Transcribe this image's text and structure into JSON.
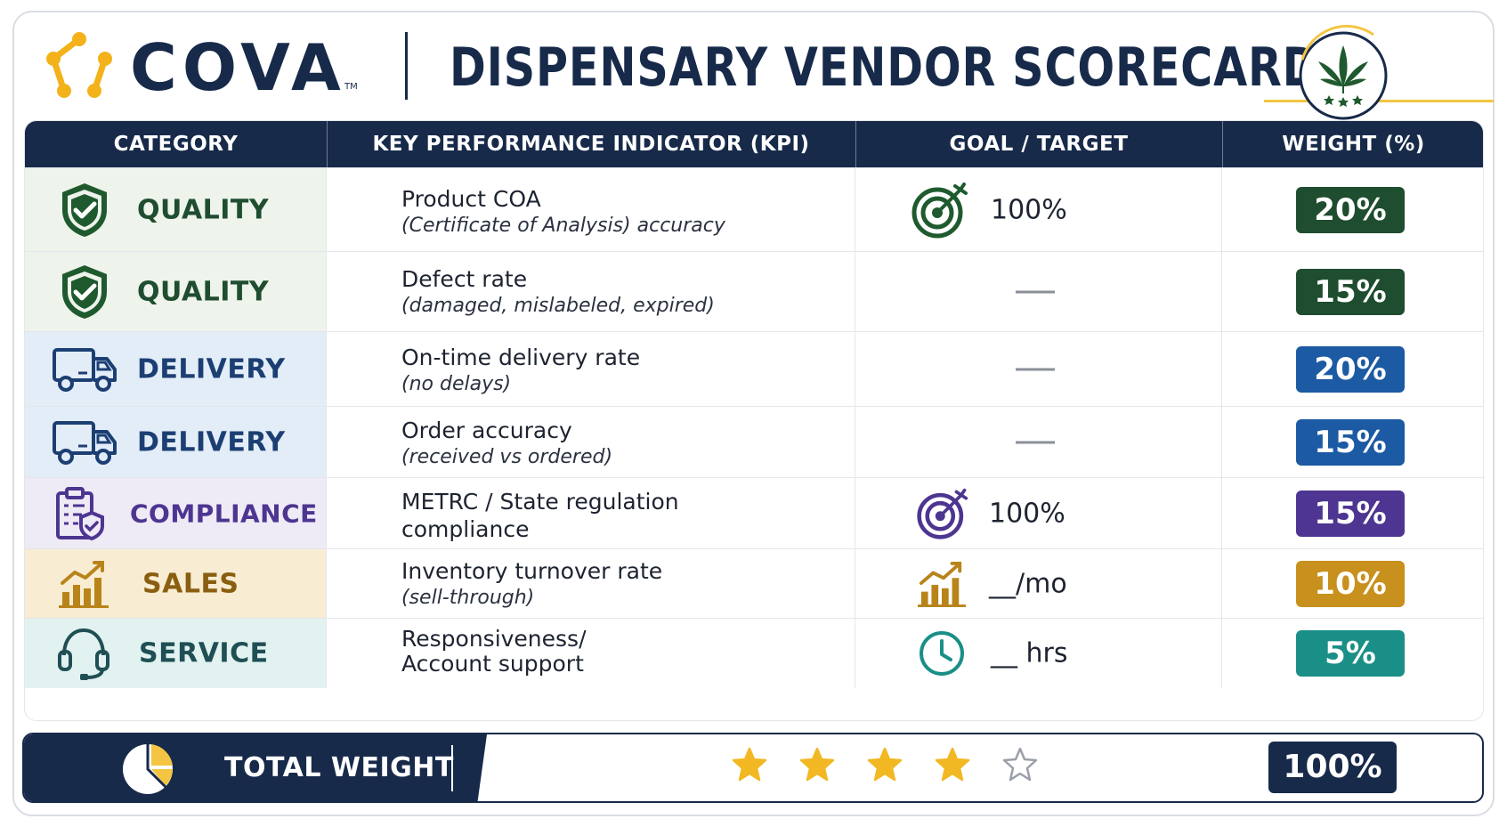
{
  "header": {
    "brand": "COVA",
    "trademark": "TM",
    "title": "DISPENSARY VENDOR SCORECARD"
  },
  "columns": [
    "CATEGORY",
    "KEY PERFORMANCE INDICATOR (KPI)",
    "GOAL / TARGET",
    "WEIGHT (%)"
  ],
  "rows": [
    {
      "category": "QUALITY",
      "icon": "shield-check-icon",
      "kpi": "Product COA",
      "kpi_sub": "(Certificate of Analysis) accuracy",
      "goal": "100%",
      "goal_icon": "target-icon",
      "weight": "20%",
      "color": "#1f4d2f",
      "bg": "#eef3ec"
    },
    {
      "category": "QUALITY",
      "icon": "shield-check-icon",
      "kpi": "Defect rate",
      "kpi_sub": "(damaged, mislabeled, expired)",
      "goal": "",
      "goal_icon": "",
      "weight": "15%",
      "color": "#1f4d2f",
      "bg": "#eef3ec"
    },
    {
      "category": "DELIVERY",
      "icon": "truck-icon",
      "kpi": "On-time delivery rate",
      "kpi_sub": "(no delays)",
      "goal": "",
      "goal_icon": "",
      "weight": "20%",
      "color": "#1c5aa3",
      "bg": "#e3edf8"
    },
    {
      "category": "DELIVERY",
      "icon": "truck-icon",
      "kpi": "Order accuracy",
      "kpi_sub": "(received vs ordered)",
      "goal": "",
      "goal_icon": "",
      "weight": "15%",
      "color": "#1c5aa3",
      "bg": "#e3edf8"
    },
    {
      "category": "COMPLIANCE",
      "icon": "clipboard-shield-icon",
      "kpi": "METRC / State regulation",
      "kpi_sub": "compliance",
      "goal": "100%",
      "goal_icon": "target-icon",
      "weight": "15%",
      "color": "#4d3591",
      "bg": "#eeeaf6"
    },
    {
      "category": "SALES",
      "icon": "bar-chart-icon",
      "kpi": "Inventory turnover rate",
      "kpi_sub": "(sell-through)",
      "goal": "__/mo",
      "goal_icon": "bar-chart-icon",
      "weight": "10%",
      "color": "#c8901c",
      "bg": "#f8edd2"
    },
    {
      "category": "SERVICE",
      "icon": "headset-icon",
      "kpi": "Responsiveness/",
      "kpi_sub": "Account support",
      "goal": "__ hrs",
      "goal_icon": "clock-icon",
      "weight": "5%",
      "color": "#1a8f87",
      "bg": "#e2f2f0"
    }
  ],
  "footer": {
    "label": "TOTAL WEIGHT",
    "rating": 4,
    "rating_max": 5,
    "total": "100%"
  },
  "colors": {
    "navy": "#172a4a",
    "gold": "#f4c542",
    "star": "#f2b824"
  }
}
